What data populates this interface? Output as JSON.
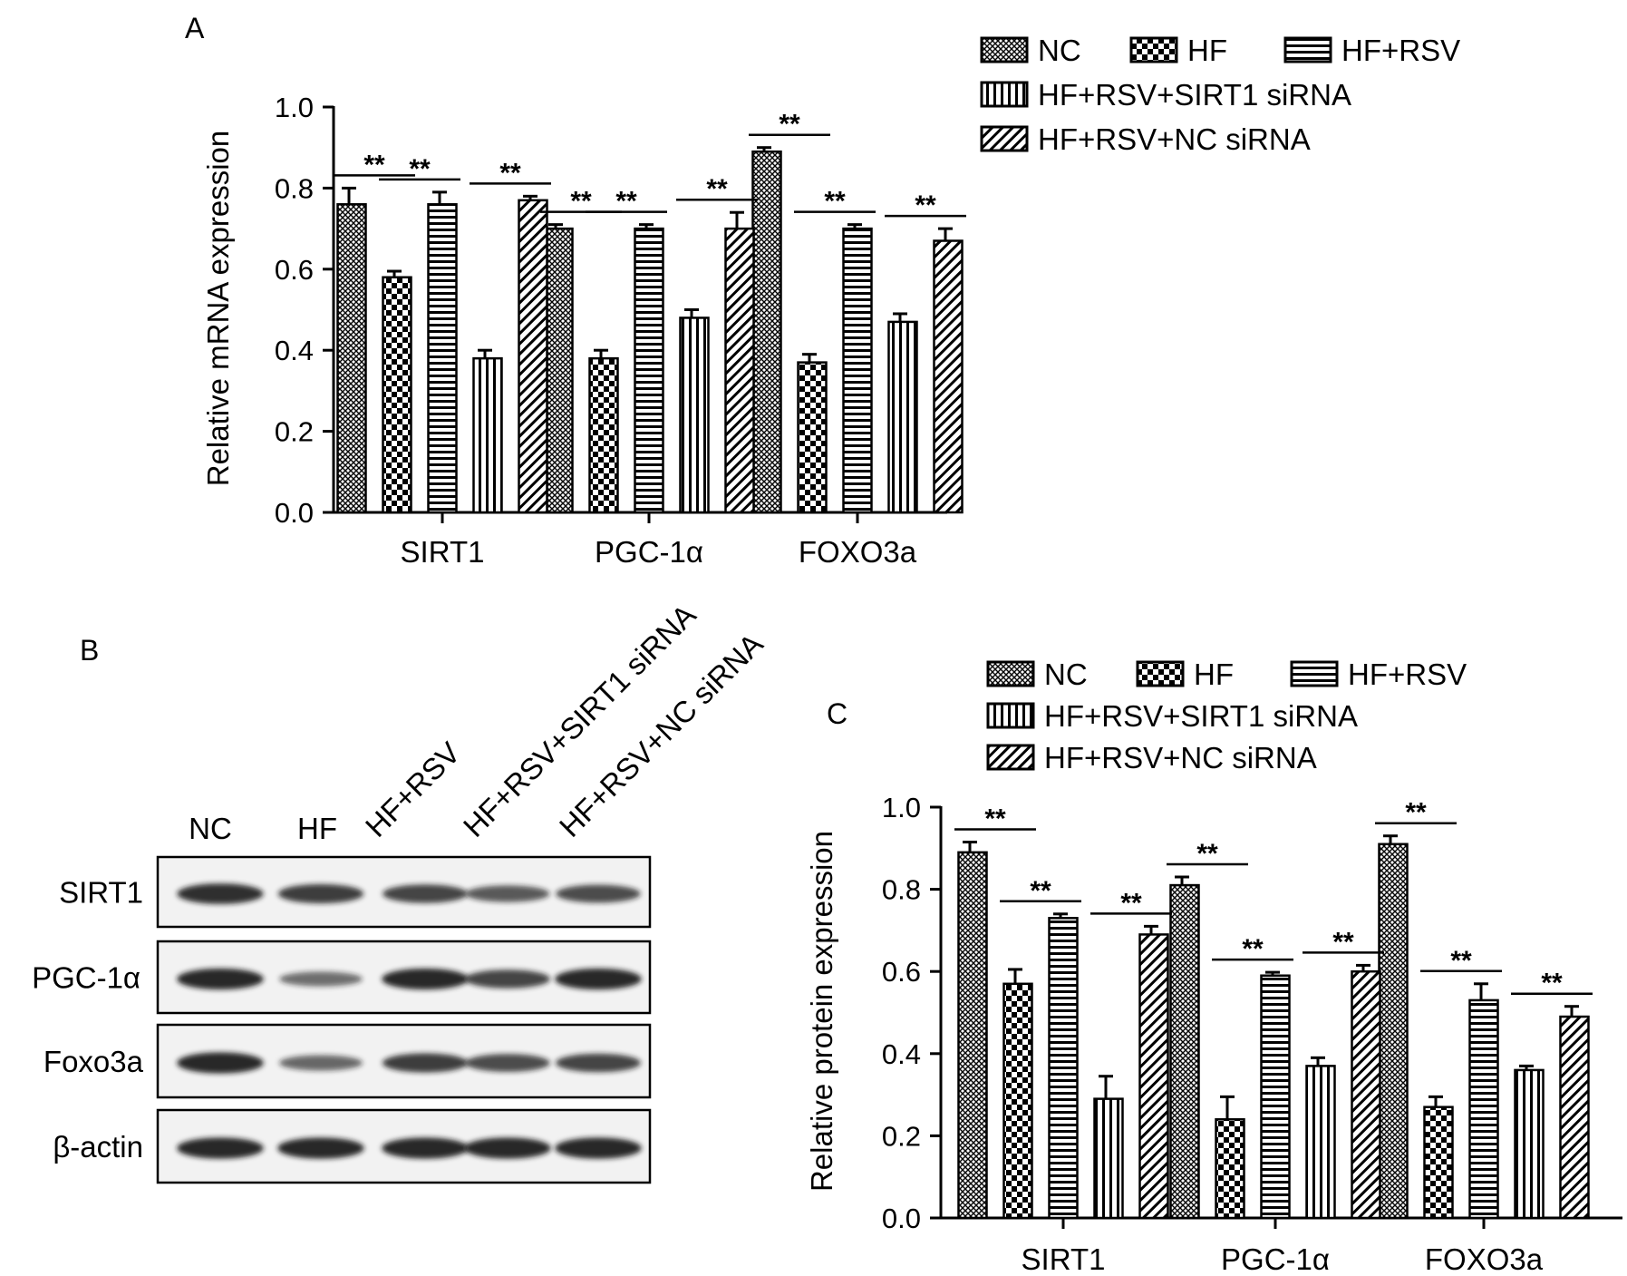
{
  "panels": {
    "A": "A",
    "B": "B",
    "C": "C"
  },
  "colors": {
    "ink": "#000000",
    "bar_fill": "#ffffff",
    "blot_bg": "#f2f2f2",
    "band": "#1a1a1a"
  },
  "patterns": {
    "NC": "fine-diagonal-crosshatch",
    "HF": "checkerboard",
    "HF+RSV": "horizontal-stripes",
    "HF+RSV+SIRT1 siRNA": "vertical-stripes",
    "HF+RSV+NC siRNA": "diagonal-stripes"
  },
  "chart_data": [
    {
      "panel": "A",
      "type": "bar",
      "title": "",
      "xlabel": "",
      "ylabel": "Relative mRNA expression",
      "ylim": [
        0,
        1.0
      ],
      "yticks": [
        "0.0",
        "0.2",
        "0.4",
        "0.6",
        "0.8",
        "1.0"
      ],
      "categories": [
        "SIRT1",
        "PGC-1α",
        "FOXO3a"
      ],
      "legend_position": "top-right",
      "legend_rows": [
        [
          "NC",
          "HF",
          "HF+RSV"
        ],
        [
          "HF+RSV+SIRT1 siRNA"
        ],
        [
          "HF+RSV+NC siRNA"
        ]
      ],
      "series": [
        {
          "name": "NC",
          "values": [
            0.76,
            0.7,
            0.89
          ],
          "errors": [
            0.04,
            0.01,
            0.01
          ]
        },
        {
          "name": "HF",
          "values": [
            0.58,
            0.38,
            0.37
          ],
          "errors": [
            0.015,
            0.02,
            0.02
          ]
        },
        {
          "name": "HF+RSV",
          "values": [
            0.76,
            0.7,
            0.7
          ],
          "errors": [
            0.03,
            0.01,
            0.01
          ]
        },
        {
          "name": "HF+RSV+SIRT1 siRNA",
          "values": [
            0.38,
            0.48,
            0.47
          ],
          "errors": [
            0.02,
            0.02,
            0.02
          ]
        },
        {
          "name": "HF+RSV+NC siRNA",
          "values": [
            0.77,
            0.7,
            0.67
          ],
          "errors": [
            0.01,
            0.04,
            0.03
          ]
        }
      ],
      "significance": [
        {
          "category": 0,
          "from": 0,
          "to": 1,
          "label": "**"
        },
        {
          "category": 0,
          "from": 1,
          "to": 2,
          "label": "**"
        },
        {
          "category": 0,
          "from": 3,
          "to": 4,
          "label": "**"
        },
        {
          "category": 1,
          "from": 0,
          "to": 1,
          "label": "**"
        },
        {
          "category": 1,
          "from": 1,
          "to": 2,
          "label": "**"
        },
        {
          "category": 1,
          "from": 3,
          "to": 4,
          "label": "**"
        },
        {
          "category": 2,
          "from": 0,
          "to": 1,
          "label": "**"
        },
        {
          "category": 2,
          "from": 1,
          "to": 2,
          "label": "**"
        },
        {
          "category": 2,
          "from": 3,
          "to": 4,
          "label": "**"
        }
      ]
    },
    {
      "panel": "C",
      "type": "bar",
      "title": "",
      "xlabel": "",
      "ylabel": "Relative protein expression",
      "ylim": [
        0,
        1.0
      ],
      "yticks": [
        "0.0",
        "0.2",
        "0.4",
        "0.6",
        "0.8",
        "1.0"
      ],
      "categories": [
        "SIRT1",
        "PGC-1α",
        "FOXO3a"
      ],
      "legend_position": "top",
      "legend_rows": [
        [
          "NC",
          "HF",
          "HF+RSV"
        ],
        [
          "HF+RSV+SIRT1 siRNA"
        ],
        [
          "HF+RSV+NC siRNA"
        ]
      ],
      "series": [
        {
          "name": "NC",
          "values": [
            0.89,
            0.81,
            0.91
          ],
          "errors": [
            0.025,
            0.02,
            0.02
          ]
        },
        {
          "name": "HF",
          "values": [
            0.57,
            0.24,
            0.27
          ],
          "errors": [
            0.035,
            0.055,
            0.025
          ]
        },
        {
          "name": "HF+RSV",
          "values": [
            0.73,
            0.59,
            0.53
          ],
          "errors": [
            0.01,
            0.008,
            0.04
          ]
        },
        {
          "name": "HF+RSV+SIRT1 siRNA",
          "values": [
            0.29,
            0.37,
            0.36
          ],
          "errors": [
            0.055,
            0.02,
            0.01
          ]
        },
        {
          "name": "HF+RSV+NC siRNA",
          "values": [
            0.69,
            0.6,
            0.49
          ],
          "errors": [
            0.02,
            0.015,
            0.025
          ]
        }
      ],
      "significance": [
        {
          "category": 0,
          "from": 0,
          "to": 1,
          "label": "**"
        },
        {
          "category": 0,
          "from": 1,
          "to": 2,
          "label": "**"
        },
        {
          "category": 0,
          "from": 3,
          "to": 4,
          "label": "**"
        },
        {
          "category": 1,
          "from": 0,
          "to": 1,
          "label": "**"
        },
        {
          "category": 1,
          "from": 1,
          "to": 2,
          "label": "**"
        },
        {
          "category": 1,
          "from": 3,
          "to": 4,
          "label": "**"
        },
        {
          "category": 2,
          "from": 0,
          "to": 1,
          "label": "**"
        },
        {
          "category": 2,
          "from": 1,
          "to": 2,
          "label": "**"
        },
        {
          "category": 2,
          "from": 3,
          "to": 4,
          "label": "**"
        }
      ]
    }
  ],
  "blot": {
    "lanes": [
      "NC",
      "HF",
      "HF+RSV",
      "HF+RSV+SIRT1 siRNA",
      "HF+RSV+NC siRNA"
    ],
    "rows": [
      {
        "label": "SIRT1",
        "intensity": [
          0.9,
          0.8,
          0.75,
          0.6,
          0.7
        ]
      },
      {
        "label": "PGC-1α",
        "intensity": [
          0.95,
          0.45,
          0.95,
          0.75,
          0.95
        ]
      },
      {
        "label": "Foxo3a",
        "intensity": [
          0.95,
          0.5,
          0.8,
          0.7,
          0.75
        ]
      },
      {
        "label": "β-actin",
        "intensity": [
          0.95,
          0.95,
          0.95,
          0.95,
          0.95
        ]
      }
    ]
  }
}
